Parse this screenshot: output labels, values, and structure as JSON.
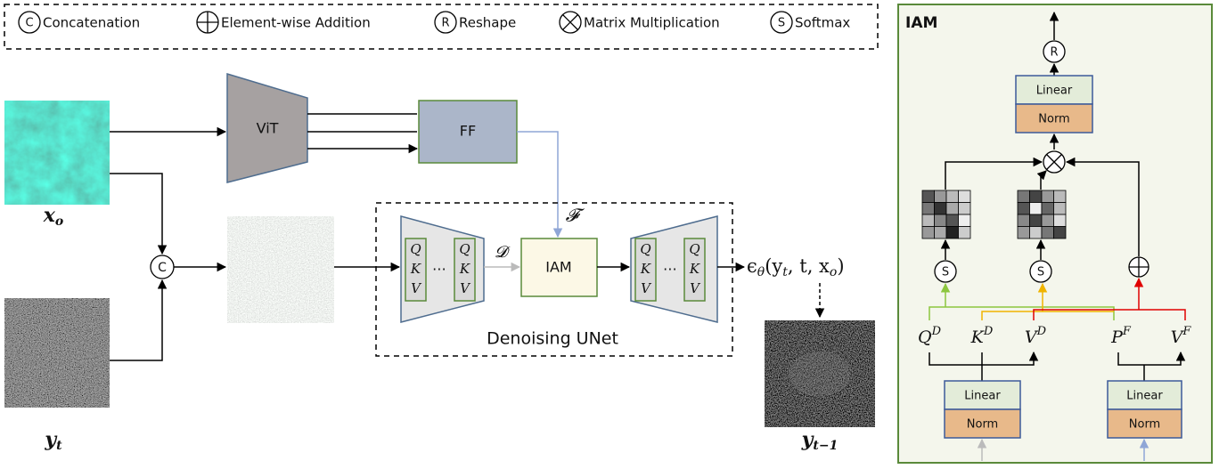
{
  "legend": [
    {
      "symbol": "C",
      "label": "Concatenation"
    },
    {
      "label": "Element-wise Addition"
    },
    {
      "symbol": "R",
      "label": "Reshape"
    },
    {
      "label": "Matrix Multiplication"
    },
    {
      "symbol": "S",
      "label": "Softmax"
    }
  ],
  "main": {
    "input_image": {
      "base": "x",
      "sub": "o"
    },
    "noise_image": {
      "base": "y",
      "sub": "t"
    },
    "output_image": {
      "base": "y",
      "sub": "t−1"
    },
    "vit": "ViT",
    "ff": "FF",
    "feature_symbol": "𝓕",
    "decoder_symbol": "𝓓",
    "concat_symbol": "C",
    "iam": "IAM",
    "qkv": [
      "Q",
      "K",
      "V"
    ],
    "ellipsis": "⋯",
    "unet_label": "Denoising UNet",
    "formula": [
      {
        "text": "ϵ",
        "sub": false
      },
      {
        "text": "θ",
        "sub": true
      },
      {
        "text": "(y",
        "sub": false
      },
      {
        "text": "t",
        "sub": true
      },
      {
        "text": ", t, x",
        "sub": false
      },
      {
        "text": "o",
        "sub": true
      },
      {
        "text": ")",
        "sub": false
      }
    ]
  },
  "iam_panel": {
    "title": "IAM",
    "reshape": "R",
    "softmax": "S",
    "linear": "Linear",
    "norm": "Norm",
    "inputs": [
      {
        "base": "Q",
        "sup": "D"
      },
      {
        "base": "K",
        "sup": "D"
      },
      {
        "base": "V",
        "sup": "D"
      },
      {
        "base": "P",
        "sup": "F"
      },
      {
        "base": "V",
        "sup": "F"
      }
    ]
  }
}
